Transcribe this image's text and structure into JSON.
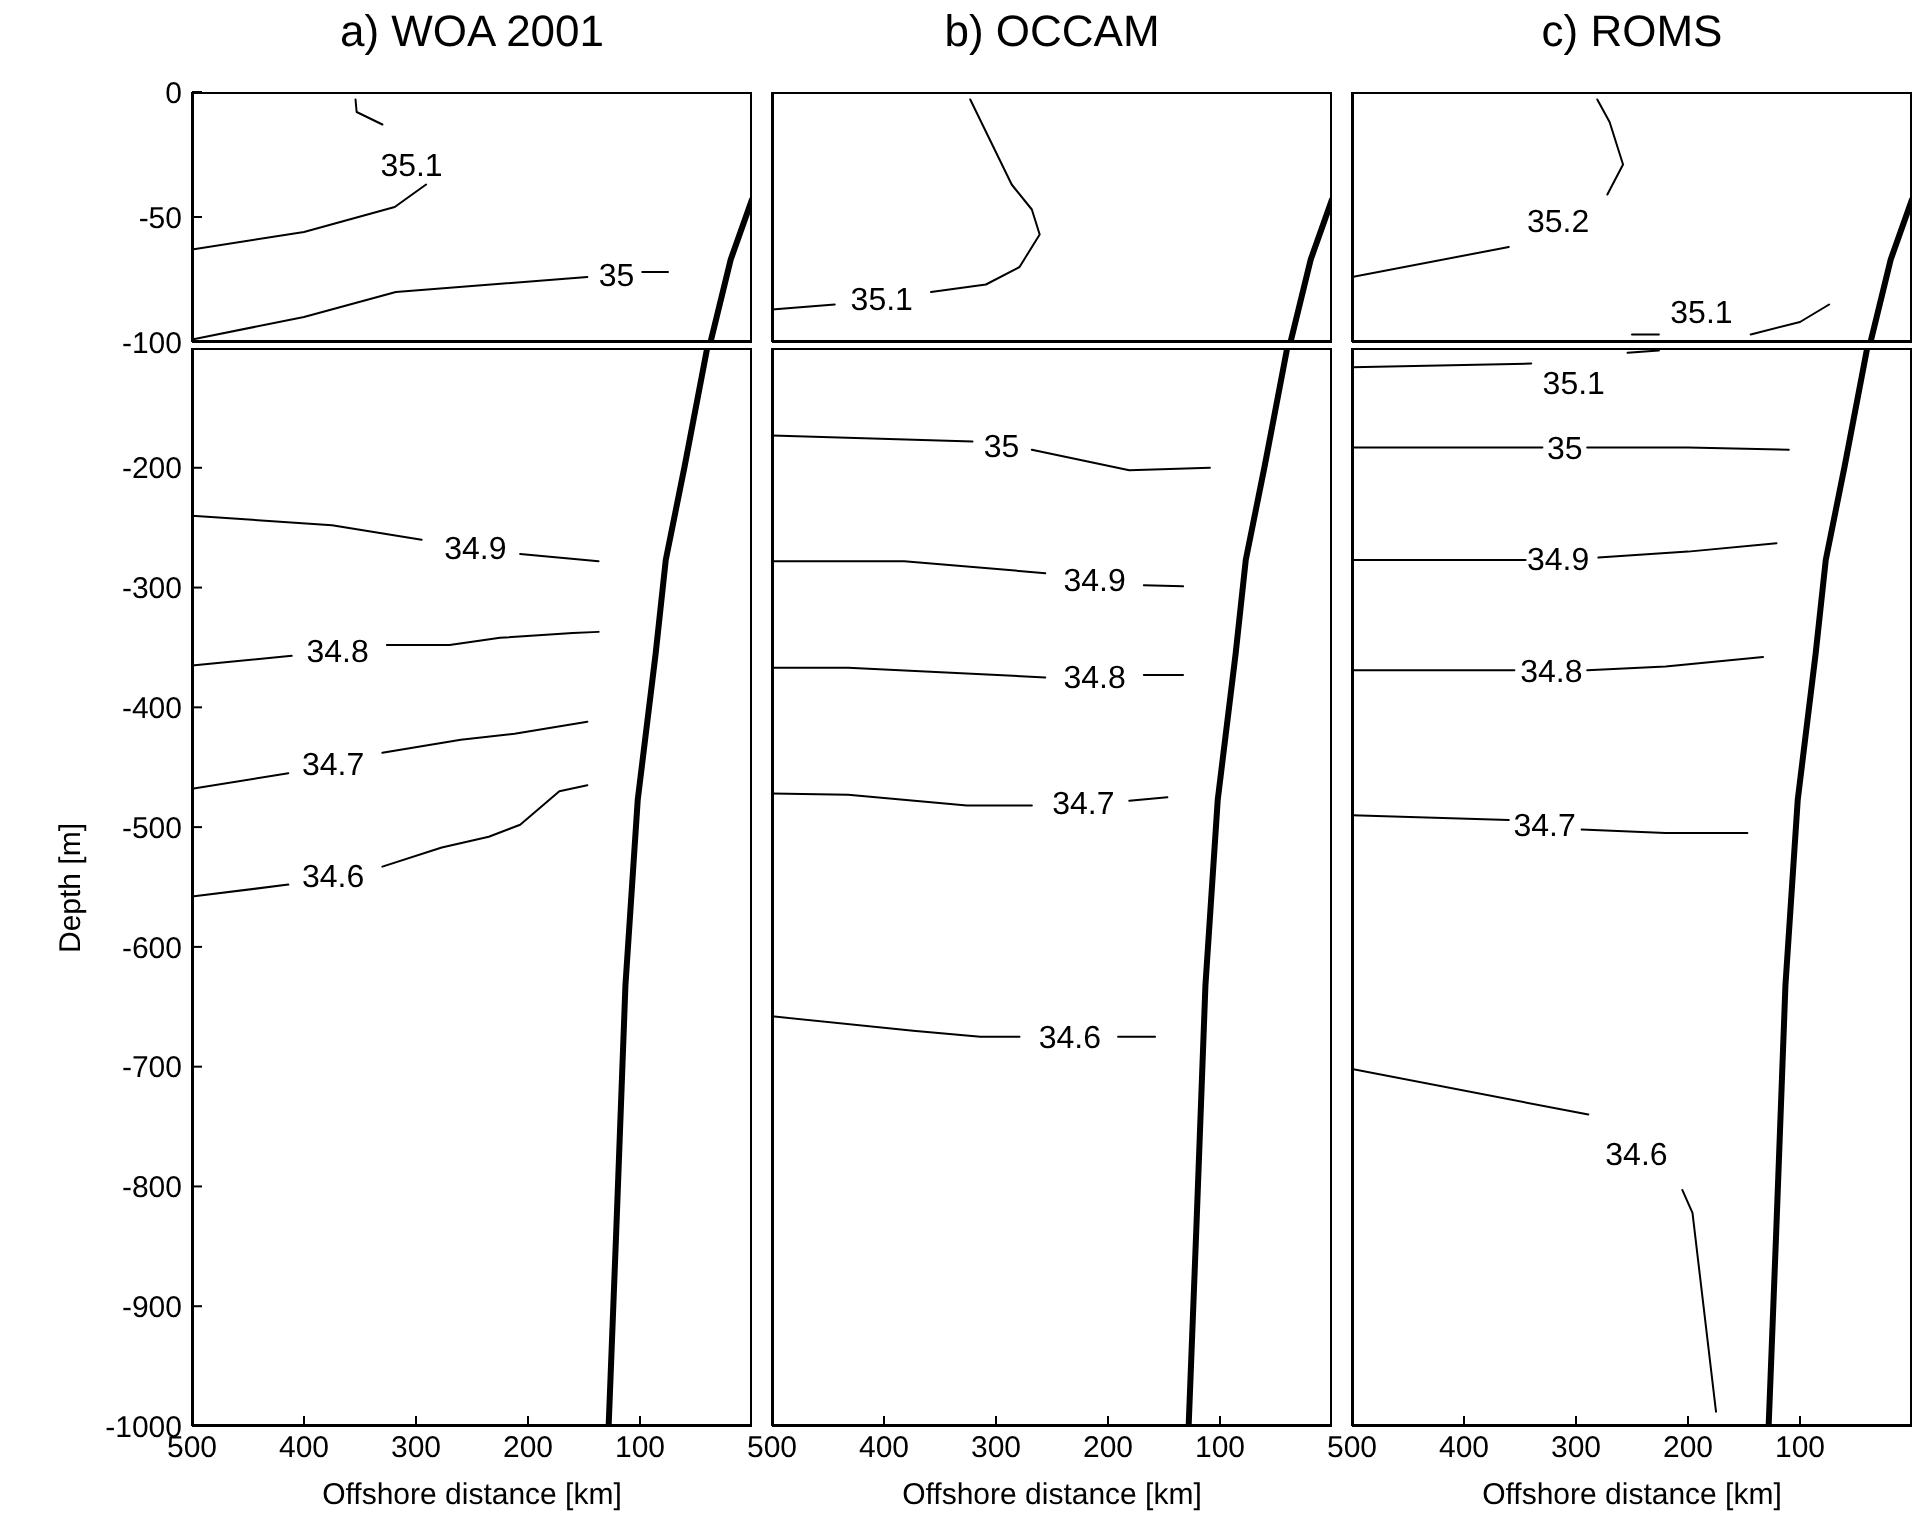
{
  "chart_data": [
    {
      "type": "line",
      "title": "a) WOA 2001",
      "xlim": [
        500,
        0
      ],
      "ylim": [
        -100,
        0
      ],
      "yticks": [
        0,
        -50,
        -100
      ],
      "tick_labels": "y",
      "series": [
        {
          "name": "35.1",
          "color": "#000000",
          "x": [
            500,
            400,
            319,
            291,
            304,
            330,
            353,
            354
          ],
          "values": [
            -63,
            -56,
            -46,
            -37,
            null,
            -13,
            -8,
            -3
          ]
        },
        {
          "name": "35",
          "color": "#000000",
          "x": [
            500,
            400,
            318,
            147,
            121,
            98,
            75
          ],
          "values": [
            -99,
            -90,
            -80,
            -74,
            null,
            -72,
            -72
          ]
        },
        {
          "color": "#000000",
          "x": [
            0,
            19,
            37
          ],
          "values": [
            -43,
            -67,
            -100
          ]
        }
      ]
    },
    {
      "type": "line",
      "title": "b) OCCAM",
      "xlim": [
        500,
        0
      ],
      "ylim": [
        -100,
        0
      ],
      "tick_labels": false,
      "series": [
        {
          "name": "35.1",
          "color": "#000000",
          "x": [
            500,
            444,
            402,
            358,
            309,
            279,
            261,
            268,
            286,
            323
          ],
          "values": [
            -87,
            -85,
            null,
            -80,
            -77,
            -70,
            -57,
            -47,
            -37,
            -3
          ]
        },
        {
          "color": "#000000",
          "x": [
            0,
            19,
            37
          ],
          "values": [
            -43,
            -67,
            -100
          ]
        }
      ]
    },
    {
      "type": "line",
      "title": "c) ROMS",
      "xlim": [
        500,
        0
      ],
      "ylim": [
        -100,
        0
      ],
      "tick_labels": false,
      "series": [
        {
          "name": "35.2",
          "color": "#000000",
          "x": [
            500,
            360,
            316,
            272,
            258,
            270,
            281
          ],
          "values": [
            -74,
            -62,
            null,
            -41,
            -29,
            -12,
            -3
          ]
        },
        {
          "name": "35.1",
          "color": "#000000",
          "x": [
            250,
            226,
            188,
            144,
            100,
            74
          ],
          "values": [
            -97,
            -97,
            null,
            -97,
            -92,
            -85
          ]
        },
        {
          "color": "#000000",
          "x": [
            0,
            19,
            37
          ],
          "values": [
            -43,
            -67,
            -100
          ]
        }
      ]
    },
    {
      "type": "line",
      "xlabel": "Offshore distance [km]",
      "ylabel": "Depth [m]",
      "xlim": [
        500,
        0
      ],
      "ylim": [
        -1000,
        -100
      ],
      "xticks": [
        500,
        400,
        300,
        200,
        100
      ],
      "yticks": [
        -200,
        -300,
        -400,
        -500,
        -600,
        -700,
        -800,
        -900,
        -1000
      ],
      "series": [
        {
          "name": "34.9",
          "color": "#000000",
          "x": [
            500,
            375,
            295,
            247,
            207,
            137
          ],
          "values": [
            -240,
            -248,
            -260,
            null,
            -272,
            -278
          ]
        },
        {
          "name": "34.8",
          "color": "#000000",
          "x": [
            500,
            411,
            370,
            326,
            270,
            225,
            160,
            137
          ],
          "values": [
            -365,
            -357,
            null,
            -348,
            -348,
            -342,
            -338,
            -337
          ]
        },
        {
          "name": "34.7",
          "color": "#000000",
          "x": [
            500,
            414,
            374,
            330,
            260,
            212,
            147
          ],
          "values": [
            -468,
            -455,
            null,
            -438,
            -427,
            -422,
            -412
          ]
        },
        {
          "name": "34.6",
          "color": "#000000",
          "x": [
            500,
            414,
            374,
            330,
            277,
            235,
            207,
            172,
            147
          ],
          "values": [
            -558,
            -548,
            null,
            -533,
            -517,
            -508,
            -498,
            -470,
            -465
          ]
        },
        {
          "color": "#000000",
          "x": [
            40,
            60,
            77,
            86,
            102,
            113,
            121,
            128
          ],
          "values": [
            -100,
            -198,
            -277,
            -355,
            -477,
            -632,
            -832,
            -1000
          ]
        }
      ]
    },
    {
      "type": "line",
      "xlabel": "Offshore distance [km]",
      "xlim": [
        500,
        0
      ],
      "ylim": [
        -1000,
        -100
      ],
      "xticks": [
        500,
        400,
        300,
        200,
        100
      ],
      "tick_labels": "x",
      "series": [
        {
          "name": "35",
          "color": "#000000",
          "x": [
            500,
            321,
            295,
            268,
            181,
            109
          ],
          "values": [
            -173,
            -178,
            null,
            -185,
            -202,
            -200
          ]
        },
        {
          "name": "34.9",
          "color": "#000000",
          "x": [
            500,
            382,
            256,
            212,
            168,
            133
          ],
          "values": [
            -278,
            -278,
            -288,
            null,
            -298,
            -299
          ]
        },
        {
          "name": "34.8",
          "color": "#000000",
          "x": [
            500,
            432,
            256,
            212,
            168,
            133
          ],
          "values": [
            -367,
            -367,
            -375,
            null,
            -373,
            -373
          ]
        },
        {
          "name": "34.7",
          "color": "#000000",
          "x": [
            500,
            432,
            326,
            268,
            222,
            181,
            147
          ],
          "values": [
            -472,
            -473,
            -482,
            -482,
            null,
            -478,
            -475
          ]
        },
        {
          "name": "34.6",
          "color": "#000000",
          "x": [
            500,
            374,
            314,
            279,
            234,
            191,
            158
          ],
          "values": [
            -658,
            -670,
            -675,
            -675,
            null,
            -675,
            -675
          ]
        },
        {
          "color": "#000000",
          "x": [
            40,
            60,
            77,
            86,
            102,
            113,
            121,
            128
          ],
          "values": [
            -100,
            -198,
            -277,
            -355,
            -477,
            -632,
            -832,
            -1000
          ]
        }
      ]
    },
    {
      "type": "line",
      "xlabel": "Offshore distance [km]",
      "xlim": [
        500,
        0
      ],
      "ylim": [
        -1000,
        -100
      ],
      "xticks": [
        500,
        400,
        300,
        200,
        100
      ],
      "tick_labels": "x",
      "series": [
        {
          "name": "35.1",
          "color": "#000000",
          "x": [
            500,
            340,
            302,
            254,
            226
          ],
          "values": [
            -116,
            -113,
            null,
            -104,
            -102
          ]
        },
        {
          "name": "35",
          "color": "#000000",
          "x": [
            500,
            330,
            310,
            290,
            200,
            110
          ],
          "values": [
            -183,
            -183,
            null,
            -183,
            -183,
            -185
          ]
        },
        {
          "name": "34.9",
          "color": "#000000",
          "x": [
            500,
            345,
            316,
            280,
            200,
            121
          ],
          "values": [
            -277,
            -277,
            null,
            -275,
            -270,
            -263
          ]
        },
        {
          "name": "34.8",
          "color": "#000000",
          "x": [
            500,
            355,
            322,
            290,
            220,
            133
          ],
          "values": [
            -369,
            -369,
            null,
            -369,
            -366,
            -358
          ]
        },
        {
          "name": "34.7",
          "color": "#000000",
          "x": [
            500,
            360,
            328,
            295,
            220,
            147
          ],
          "values": [
            -490,
            -494,
            null,
            -502,
            -505,
            -505
          ]
        },
        {
          "name": "34.6",
          "color": "#000000",
          "x": [
            500,
            289,
            246,
            205,
            196,
            175
          ],
          "values": [
            -702,
            -740,
            null,
            -803,
            -822,
            -988
          ]
        },
        {
          "color": "#000000",
          "x": [
            40,
            60,
            77,
            86,
            102,
            113,
            121,
            128
          ],
          "values": [
            -100,
            -198,
            -277,
            -355,
            -477,
            -632,
            -832,
            -1000
          ]
        }
      ]
    }
  ]
}
